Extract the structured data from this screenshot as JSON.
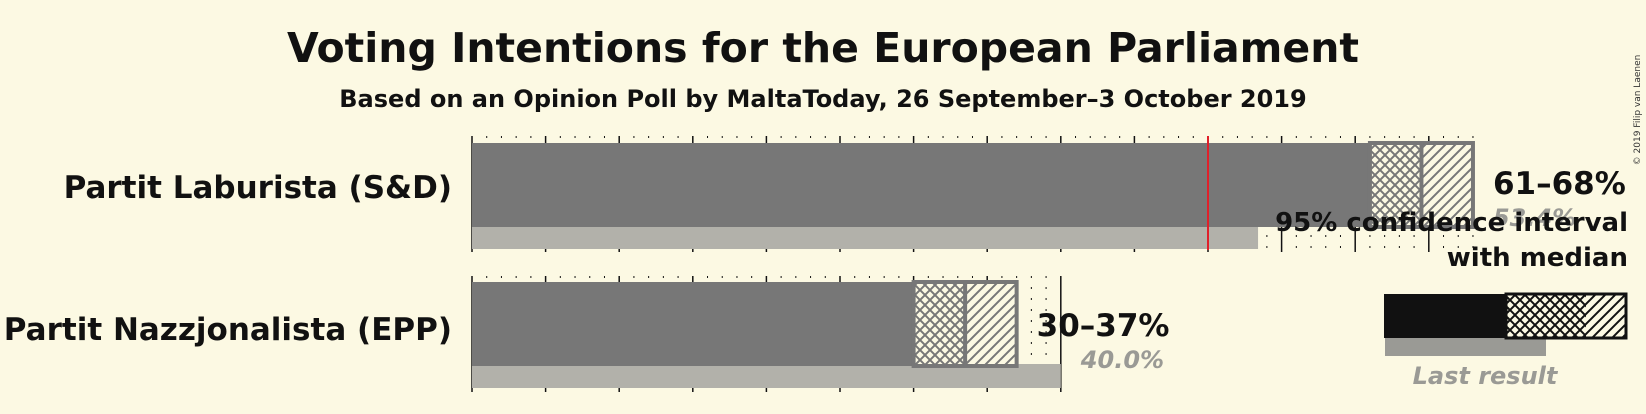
{
  "header": {
    "title": "Voting Intentions for the European Parliament",
    "subtitle": "Based on an Opinion Poll by MaltaToday, 26 September–3 October 2019",
    "copyright": "© 2019 Filip van Laenen"
  },
  "chart_data": {
    "type": "bar",
    "orientation": "horizontal",
    "x_unit": "%",
    "majority_line": 50,
    "series": [
      {
        "party": "Partit Laburista (S&D)",
        "ci_low": 61,
        "ci_high": 68,
        "median": 64.5,
        "last_result": 53.4,
        "range_label": "61–68%",
        "last_label": "53.4%"
      },
      {
        "party": "Partit Nazzjonalista (EPP)",
        "ci_low": 30,
        "ci_high": 37,
        "median": 33.5,
        "last_result": 40.0,
        "range_label": "30–37%",
        "last_label": "40.0%"
      }
    ],
    "legend": {
      "line1": "95% confidence interval",
      "line2": "with median",
      "last_result_label": "Last result",
      "position": "right"
    },
    "colors": {
      "bar": "#777777",
      "last_result": "#b2b1aa",
      "majority": "#e0202a",
      "legend_bar": "#111111",
      "background": "#fcf9e3"
    }
  }
}
